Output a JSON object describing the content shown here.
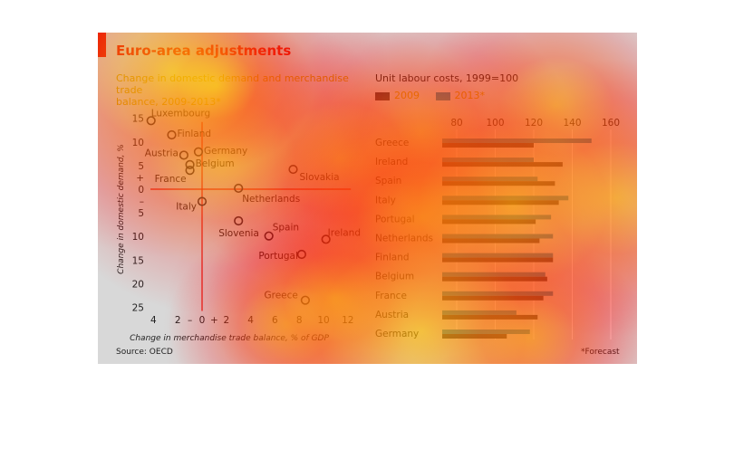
{
  "header": {
    "title": "Euro-area adjustments"
  },
  "footer": {
    "source": "Source: OECD",
    "footnote": "*Forecast"
  },
  "colors": {
    "accent": "#e3120b",
    "panel": "#d8d8d8",
    "bar_2009": "#2f2f3a",
    "bar_2013": "#1f7fa8",
    "point": "#1e1e2e",
    "zero_line": "#e3120b"
  },
  "chart_data": [
    {
      "type": "scatter",
      "title": "Change in domestic demand and merchandise trade balance, 2009-2013*",
      "title_display": [
        "Change in domestic demand and merchandise trade",
        "balance, 2009-2013*"
      ],
      "xlabel": "Change in merchandise trade balance, % of GDP",
      "ylabel": "Change in domestic demand, %",
      "xlim": [
        -5,
        13
      ],
      "ylim": [
        -25,
        16
      ],
      "x_ticks": [
        "4",
        "2",
        "–",
        "0",
        "+",
        "2",
        "4",
        "6",
        "8",
        "10",
        "12"
      ],
      "y_ticks": [
        "15",
        "10",
        "5",
        "+",
        "0",
        "–",
        "5",
        "10",
        "15",
        "20",
        "25"
      ],
      "points": [
        {
          "label": "Luxembourg",
          "x": -4.2,
          "y": 14.5
        },
        {
          "label": "Finland",
          "x": -2.5,
          "y": 11.5
        },
        {
          "label": "Germany",
          "x": -0.3,
          "y": 7.9
        },
        {
          "label": "Austria",
          "x": -1.5,
          "y": 7.2
        },
        {
          "label": "Belgium",
          "x": -1.0,
          "y": 5.2
        },
        {
          "label": "France",
          "x": -1.0,
          "y": 4.0
        },
        {
          "label": "Slovakia",
          "x": 7.5,
          "y": 4.2
        },
        {
          "label": "Netherlands",
          "x": 3.0,
          "y": 0.2
        },
        {
          "label": "Italy",
          "x": 0.0,
          "y": -2.6
        },
        {
          "label": "Slovenia",
          "x": 3.0,
          "y": -6.7
        },
        {
          "label": "Spain",
          "x": 5.5,
          "y": -9.9
        },
        {
          "label": "Ireland",
          "x": 10.2,
          "y": -10.6
        },
        {
          "label": "Portugal",
          "x": 8.2,
          "y": -13.8
        },
        {
          "label": "Greece",
          "x": 8.5,
          "y": -23.5
        }
      ]
    },
    {
      "type": "bar",
      "orientation": "horizontal",
      "title": "Unit labour costs, 1999=100",
      "xlim": [
        60,
        165
      ],
      "x_ticks": [
        80,
        100,
        120,
        140,
        160
      ],
      "categories": [
        "Greece",
        "Ireland",
        "Spain",
        "Italy",
        "Portugal",
        "Netherlands",
        "Finland",
        "Belgium",
        "France",
        "Austria",
        "Germany"
      ],
      "series": [
        {
          "name": "2009",
          "values": [
            120,
            135,
            131,
            133,
            121,
            123,
            130,
            127,
            125,
            122,
            106
          ]
        },
        {
          "name": "2013*",
          "values": [
            150,
            120,
            122,
            138,
            129,
            130,
            130,
            126,
            130,
            111,
            118
          ]
        }
      ]
    }
  ]
}
